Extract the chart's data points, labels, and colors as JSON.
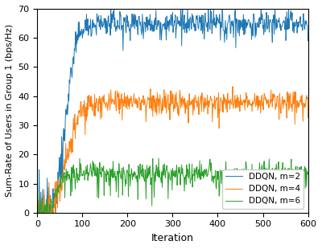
{
  "title": "",
  "xlabel": "Iteration",
  "ylabel": "Sum-Rate of Users in Group 1 (bps/Hz)",
  "xlim": [
    0,
    600
  ],
  "ylim": [
    0,
    70
  ],
  "yticks": [
    0,
    10,
    20,
    30,
    40,
    50,
    60,
    70
  ],
  "xticks": [
    0,
    100,
    200,
    300,
    400,
    500,
    600
  ],
  "series": [
    {
      "label": "DDQN, m=2",
      "color": "#1f77b4",
      "converge_iter": 115,
      "converge_val": 65.0,
      "ramp_steepness": 0.09,
      "noise_std": 2.2,
      "noise_std_early": 6.0,
      "spike_prob": 0.03,
      "spike_magnitude": 8.0
    },
    {
      "label": "DDQN, m=4",
      "color": "#ff7f0e",
      "converge_iter": 120,
      "converge_val": 38.0,
      "ramp_steepness": 0.07,
      "noise_std": 2.0,
      "noise_std_early": 5.0,
      "spike_prob": 0.04,
      "spike_magnitude": 6.0
    },
    {
      "label": "DDQN, m=6",
      "color": "#2ca02c",
      "converge_iter": 75,
      "converge_val": 13.5,
      "ramp_steepness": 0.12,
      "noise_std": 1.8,
      "noise_std_early": 3.5,
      "spike_prob": 0.08,
      "spike_magnitude": 10.0
    }
  ],
  "legend_loc": "lower right",
  "linewidth": 0.7,
  "figsize": [
    4.0,
    3.1
  ],
  "dpi": 100
}
